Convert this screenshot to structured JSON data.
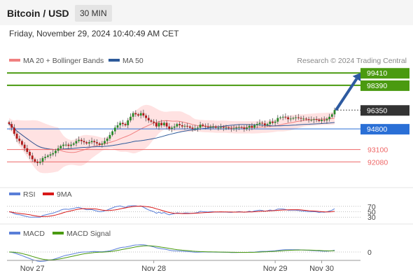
{
  "header": {
    "title": "Bitcoin / USD",
    "timeframe": "30 MIN",
    "datetime": "Friday, November 29, 2024 10:40:49 AM CET"
  },
  "legend": {
    "ma20_label": "MA 20 + Bollinger Bands",
    "ma50_label": "MA 50",
    "credit": "Research © 2024 Trading Central"
  },
  "colors": {
    "green": "#4a9a10",
    "blue_level": "#2a6fd6",
    "red_level": "#e66",
    "candle_up": "#2a8a2a",
    "candle_down": "#b01818",
    "bollinger_fill": "#ffd8d8",
    "ma20": "#f08080",
    "ma50": "#2d5a9a",
    "arrow": "#2d5aa0",
    "last_price_bg": "#333333",
    "rsi": "#5a7fd8",
    "rsi_ma": "#d81818",
    "macd": "#5a7fd8",
    "macd_signal": "#4a9a10"
  },
  "chart_data": {
    "type": "candlestick",
    "price_min": 91000,
    "price_max": 100000,
    "levels": [
      {
        "value": 99410,
        "label": "99410",
        "kind": "resistance"
      },
      {
        "value": 98390,
        "label": "98390",
        "kind": "resistance"
      },
      {
        "value": 96350,
        "label": "96350",
        "kind": "last"
      },
      {
        "value": 94800,
        "label": "94800",
        "kind": "pivot"
      },
      {
        "value": 93100,
        "label": "93100",
        "kind": "support"
      },
      {
        "value": 92080,
        "label": "92080",
        "kind": "support"
      }
    ],
    "x_labels": [
      "Nov 27",
      "Nov 28",
      "Nov 29",
      "Nov 30"
    ],
    "x_label_index": [
      9,
      56,
      103,
      121
    ],
    "candle_count": 127,
    "close": [
      95200,
      94900,
      94400,
      94000,
      93800,
      93500,
      93200,
      92900,
      92600,
      92300,
      92100,
      92000,
      92100,
      92400,
      92500,
      92600,
      92700,
      92800,
      93000,
      93200,
      93400,
      93500,
      93500,
      93400,
      93500,
      93600,
      93800,
      93900,
      93800,
      93700,
      93600,
      93700,
      93800,
      93700,
      93600,
      93500,
      93600,
      93800,
      94000,
      94300,
      94600,
      94900,
      95100,
      95300,
      95200,
      95100,
      95500,
      95800,
      96100,
      96000,
      95900,
      96100,
      95900,
      95700,
      95500,
      95400,
      95300,
      95000,
      95300,
      95100,
      95300,
      95000,
      94800,
      94900,
      95000,
      95200,
      95100,
      95000,
      95050,
      95000,
      94900,
      94800,
      94850,
      94900,
      95150,
      95050,
      95000,
      94950,
      95000,
      95000,
      94900,
      94900,
      94950,
      94900,
      94900,
      94850,
      94800,
      94850,
      94900,
      94950,
      94900,
      94800,
      94900,
      95050,
      94900,
      95100,
      95200,
      95300,
      95250,
      95100,
      95200,
      95400,
      95300,
      95400,
      95700,
      95750,
      95800,
      95750,
      95600,
      95650,
      95700,
      95750,
      95700,
      95650,
      95650,
      95600,
      95550,
      95550,
      95600,
      95550,
      95450,
      95550,
      95500,
      95600,
      95800,
      96000,
      96350
    ],
    "rsi": {
      "levels": [
        70,
        50,
        30
      ],
      "labels": [
        "70",
        "50",
        "30"
      ],
      "legend": "RSI",
      "ma_legend": "9MA"
    },
    "macd": {
      "zero_label": "0",
      "legend": "MACD",
      "signal_legend": "MACD Signal"
    }
  }
}
